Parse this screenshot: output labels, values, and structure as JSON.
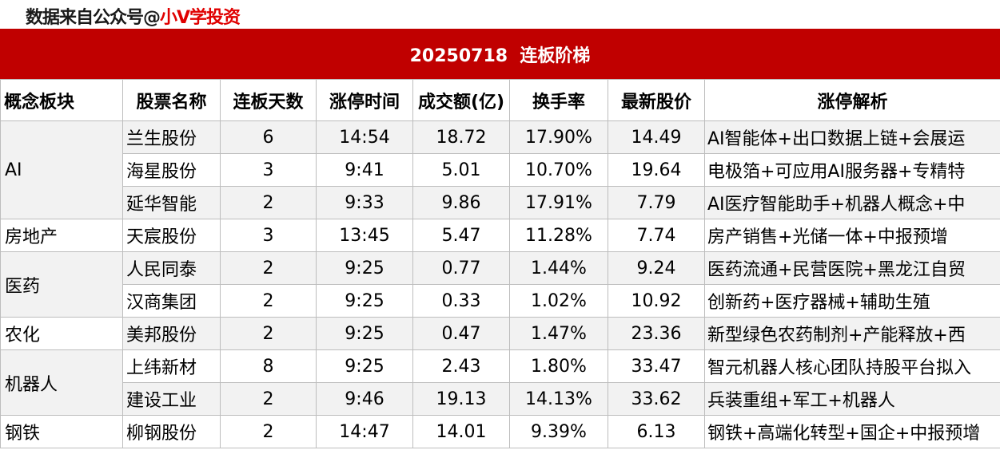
{
  "header": {
    "source_prefix": "数据来自公众号@",
    "source_brand": "小V学投资",
    "title": "20250718  连板阶梯"
  },
  "colors": {
    "title_bg": "#c00000",
    "brand": "#e00000",
    "row_alt": "#f2f2f2"
  },
  "table": {
    "columns": [
      "概念板块",
      "股票名称",
      "连板天数",
      "涨停时间",
      "成交额(亿)",
      "换手率",
      "最新股价",
      "涨停解析"
    ],
    "groups": [
      {
        "sector": "AI",
        "rows": [
          {
            "name": "兰生股份",
            "days": "6",
            "time": "14:54",
            "amount": "18.72",
            "turnover": "17.90%",
            "price": "14.49",
            "analysis": "AI智能体+出口数据上链+会展运"
          },
          {
            "name": "海星股份",
            "days": "3",
            "time": "9:41",
            "amount": "5.01",
            "turnover": "10.70%",
            "price": "19.64",
            "analysis": "电极箔+可应用AI服务器+专精特"
          },
          {
            "name": "延华智能",
            "days": "2",
            "time": "9:33",
            "amount": "9.86",
            "turnover": "17.91%",
            "price": "7.79",
            "analysis": "AI医疗智能助手+机器人概念+中"
          }
        ]
      },
      {
        "sector": "房地产",
        "rows": [
          {
            "name": "天宸股份",
            "days": "3",
            "time": "13:45",
            "amount": "5.47",
            "turnover": "11.28%",
            "price": "7.74",
            "analysis": "房产销售+光储一体+中报预增"
          }
        ]
      },
      {
        "sector": "医药",
        "rows": [
          {
            "name": "人民同泰",
            "days": "2",
            "time": "9:25",
            "amount": "0.77",
            "turnover": "1.44%",
            "price": "9.24",
            "analysis": "医药流通+民营医院+黑龙江自贸"
          },
          {
            "name": "汉商集团",
            "days": "2",
            "time": "9:25",
            "amount": "0.33",
            "turnover": "1.02%",
            "price": "10.92",
            "analysis": "创新药+医疗器械+辅助生殖"
          }
        ]
      },
      {
        "sector": "农化",
        "rows": [
          {
            "name": "美邦股份",
            "days": "2",
            "time": "9:25",
            "amount": "0.47",
            "turnover": "1.47%",
            "price": "23.36",
            "analysis": "新型绿色农药制剂+产能释放+西"
          }
        ]
      },
      {
        "sector": "机器人",
        "rows": [
          {
            "name": "上纬新材",
            "days": "8",
            "time": "9:25",
            "amount": "2.43",
            "turnover": "1.80%",
            "price": "33.47",
            "analysis": "智元机器人核心团队持股平台拟入"
          },
          {
            "name": "建设工业",
            "days": "2",
            "time": "9:46",
            "amount": "19.13",
            "turnover": "14.13%",
            "price": "33.62",
            "analysis": "兵装重组+军工+机器人"
          }
        ]
      },
      {
        "sector": "钢铁",
        "rows": [
          {
            "name": "柳钢股份",
            "days": "2",
            "time": "14:47",
            "amount": "14.01",
            "turnover": "9.39%",
            "price": "6.13",
            "analysis": "钢铁+高端化转型+国企+中报预增"
          }
        ]
      }
    ]
  }
}
